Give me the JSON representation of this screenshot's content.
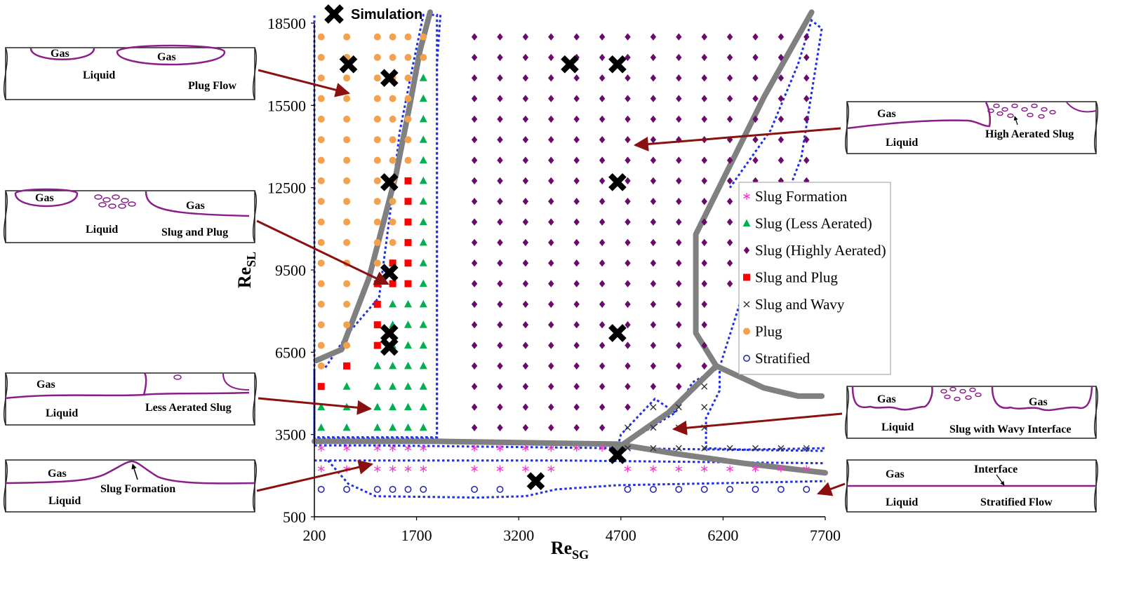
{
  "chart_data": {
    "type": "scatter",
    "title": "",
    "xlabel": {
      "main": "Re",
      "sub": "SG"
    },
    "ylabel": {
      "main": "Re",
      "sub": "SL"
    },
    "xlim": [
      200,
      7700
    ],
    "ylim": [
      500,
      18500
    ],
    "xticks": [
      200,
      1700,
      3200,
      4700,
      6200,
      7700
    ],
    "yticks": [
      500,
      3500,
      6500,
      9500,
      12500,
      15500,
      18500
    ],
    "grid": false,
    "legend_position": "center-right",
    "colors": {
      "slug_formation": "#ff33cc",
      "slug_less": "#00b050",
      "slug_highly": "#6a0a6a",
      "slug_plug": "#ff0000",
      "slug_wavy": "#333333",
      "plug": "#f4a04c",
      "stratified": "#1f1fb8",
      "boundary": "#808080",
      "region": "#1f2fe6",
      "arrow": "#8b1010",
      "pipe_interface": "#8a1e8a"
    },
    "simulation_label": "Simulation",
    "series": [
      {
        "key": "slug_formation",
        "name": "Slug Formation",
        "marker": "asterisk",
        "color": "#ff33cc"
      },
      {
        "key": "slug_less",
        "name": "Slug (Less Aerated)",
        "marker": "triangle",
        "color": "#00b050"
      },
      {
        "key": "slug_highly",
        "name": "Slug (Highly Aerated)",
        "marker": "diamond",
        "color": "#6a0a6a"
      },
      {
        "key": "slug_plug",
        "name": "Slug and Plug",
        "marker": "square",
        "color": "#ff0000"
      },
      {
        "key": "slug_wavy",
        "name": "Slug and Wavy",
        "marker": "x",
        "color": "#333333"
      },
      {
        "key": "plug",
        "name": "Plug",
        "marker": "circle",
        "color": "#f4a04c"
      },
      {
        "key": "stratified",
        "name": "Stratified",
        "marker": "open-circle",
        "color": "#1f1fb8"
      }
    ],
    "simulation_points": [
      [
        700,
        17000
      ],
      [
        1300,
        16500
      ],
      [
        3950,
        17000
      ],
      [
        4650,
        17000
      ],
      [
        1300,
        12700
      ],
      [
        4650,
        12700
      ],
      [
        1300,
        9400
      ],
      [
        1300,
        7200
      ],
      [
        1300,
        6700
      ],
      [
        4650,
        7200
      ],
      [
        3450,
        1800
      ],
      [
        4650,
        2750
      ]
    ],
    "boundaries": [
      [
        [
          230,
          6200
        ],
        [
          600,
          6600
        ],
        [
          1000,
          9200
        ],
        [
          1400,
          13000
        ],
        [
          1600,
          15500
        ],
        [
          1750,
          17500
        ],
        [
          1900,
          18900
        ]
      ],
      [
        [
          200,
          3250
        ],
        [
          2000,
          3250
        ],
        [
          4650,
          3150
        ],
        [
          5500,
          2800
        ],
        [
          6500,
          2450
        ],
        [
          7700,
          2100
        ]
      ],
      [
        [
          4650,
          3000
        ],
        [
          5400,
          4300
        ],
        [
          6100,
          6000
        ]
      ],
      [
        [
          7500,
          18900
        ],
        [
          6800,
          15800
        ],
        [
          6200,
          12800
        ],
        [
          5800,
          10800
        ],
        [
          5800,
          7200
        ],
        [
          6100,
          6000
        ]
      ],
      [
        [
          6100,
          6000
        ],
        [
          6800,
          5200
        ],
        [
          7300,
          4900
        ],
        [
          7650,
          4900
        ]
      ]
    ],
    "regions": [
      [
        [
          2050,
          18800
        ],
        [
          2000,
          17000
        ],
        [
          2000,
          3350
        ],
        [
          200,
          3350
        ],
        [
          200,
          18800
        ]
      ],
      [
        [
          200,
          5800
        ],
        [
          200,
          3400
        ],
        [
          2000,
          3400
        ],
        [
          2000,
          18800
        ],
        [
          1800,
          18800
        ],
        [
          1650,
          17000
        ],
        [
          1450,
          14500
        ],
        [
          1350,
          12300
        ],
        [
          1150,
          8500
        ],
        [
          700,
          7200
        ],
        [
          350,
          5900
        ]
      ],
      [
        [
          200,
          3100
        ],
        [
          1200,
          3100
        ],
        [
          4650,
          3000
        ],
        [
          7700,
          2900
        ]
      ],
      [
        [
          400,
          2550
        ],
        [
          700,
          1700
        ],
        [
          1100,
          1250
        ],
        [
          2600,
          1200
        ],
        [
          3300,
          1250
        ],
        [
          3750,
          1500
        ],
        [
          4650,
          1650
        ],
        [
          7700,
          1800
        ]
      ],
      [
        [
          200,
          2550
        ],
        [
          3900,
          2550
        ],
        [
          7700,
          2450
        ]
      ],
      [
        [
          4650,
          3000
        ],
        [
          5500,
          4300
        ],
        [
          5750,
          5400
        ],
        [
          6150,
          5950
        ],
        [
          6150,
          5100
        ],
        [
          5950,
          4100
        ],
        [
          5950,
          3000
        ],
        [
          6500,
          2950
        ],
        [
          7700,
          3000
        ]
      ],
      [
        [
          5500,
          4300
        ],
        [
          5200,
          4800
        ],
        [
          4700,
          3500
        ],
        [
          4650,
          3000
        ]
      ],
      [
        [
          6150,
          5950
        ],
        [
          6500,
          8700
        ],
        [
          6900,
          10700
        ],
        [
          7350,
          13600
        ],
        [
          7650,
          18300
        ],
        [
          7500,
          18600
        ],
        [
          7300,
          17000
        ],
        [
          6900,
          14600
        ],
        [
          6300,
          12500
        ]
      ]
    ],
    "sketches": {
      "plug_flow": {
        "labels": [
          "Gas",
          "Gas",
          "Liquid",
          "Plug Flow"
        ]
      },
      "slug_plug": {
        "labels": [
          "Gas",
          "Gas",
          "Liquid",
          "Slug and Plug"
        ]
      },
      "less_aerated": {
        "labels": [
          "Gas",
          "Liquid",
          "Less Aerated Slug"
        ]
      },
      "slug_formation": {
        "labels": [
          "Gas",
          "Liquid",
          "Slug Formation"
        ]
      },
      "high_aerated": {
        "labels": [
          "Gas",
          "Liquid",
          "High Aerated Slug"
        ]
      },
      "wavy": {
        "labels": [
          "Gas",
          "Gas",
          "Liquid",
          "Slug with Wavy Interface"
        ]
      },
      "stratified": {
        "labels": [
          "Gas",
          "Interface",
          "Liquid",
          "Stratified Flow"
        ]
      }
    }
  }
}
